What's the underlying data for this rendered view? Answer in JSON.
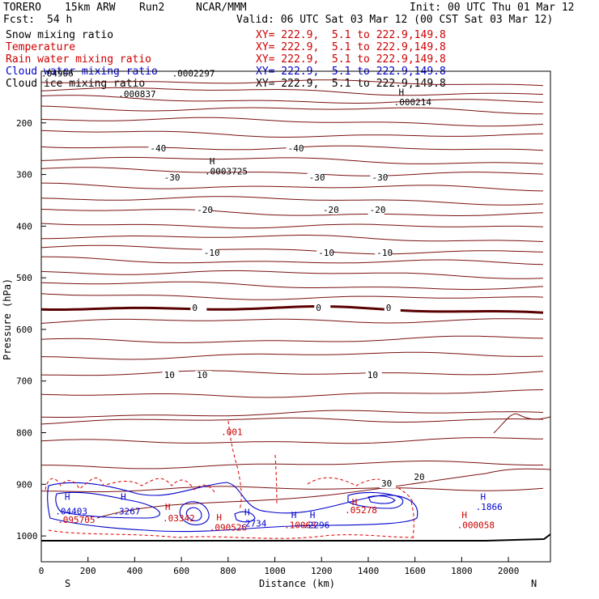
{
  "header": {
    "model": "TORERO",
    "grid": "15km ARW",
    "run": "Run2",
    "org": "NCAR/MMM",
    "init": "Init: 00 UTC Thu 01 Mar 12",
    "fcst_label": "Fcst:",
    "fcst_value": "54 h",
    "valid": "Valid: 06 UTC Sat 03 Mar 12 (00 CST Sat 03 Mar 12)",
    "fields": [
      {
        "name": "Snow mixing ratio",
        "xy": "XY= 222.9,  5.1 to 222.9,149.8",
        "color": "#000000"
      },
      {
        "name": "Temperature",
        "xy": "XY= 222.9,  5.1 to 222.9,149.8",
        "color": "#cc0000"
      },
      {
        "name": "Rain water mixing ratio",
        "xy": "XY= 222.9,  5.1 to 222.9,149.8",
        "color": "#cc0000"
      },
      {
        "name": "Cloud water mixing ratio",
        "xy": "XY= 222.9,  5.1 to 222.9,149.8",
        "color": "#0000cc"
      },
      {
        "name": "Cloud ice mixing ratio",
        "xy": "XY= 222.9,  5.1 to 222.9,149.8",
        "color": "#000000"
      }
    ]
  },
  "chart_data": {
    "type": "contour-cross-section",
    "xlabel": "Distance (km)",
    "ylabel": "Pressure (hPa)",
    "xlim": [
      0,
      2180
    ],
    "ylim": [
      100,
      1050
    ],
    "y_scale": "linear-inverted",
    "x_ticks": [
      0,
      200,
      400,
      600,
      800,
      1000,
      1200,
      1400,
      1600,
      1800,
      2000
    ],
    "y_ticks": [
      200,
      300,
      400,
      500,
      600,
      700,
      800,
      900,
      1000
    ],
    "end_labels": {
      "left": "S",
      "right": "N"
    },
    "colors": {
      "temperature": "#7a1010",
      "zero_isotherm": "#5a0000",
      "rain": "#dd0000",
      "cloud_water": "#0000cc",
      "ice": "#000000",
      "ground": "#000000"
    },
    "temperature_isotherms": [
      {
        "value": -40,
        "labels": [
          {
            "x": 490,
            "text": "-40"
          },
          {
            "x": 1080,
            "text": "-40"
          }
        ]
      },
      {
        "value": -30,
        "labels": [
          {
            "x": 550,
            "text": "-30"
          },
          {
            "x": 1170,
            "text": "-30"
          },
          {
            "x": 1440,
            "text": "-30"
          }
        ]
      },
      {
        "value": -20,
        "labels": [
          {
            "x": 690,
            "text": "-20"
          },
          {
            "x": 1230,
            "text": "-20"
          },
          {
            "x": 1430,
            "text": "-20"
          }
        ]
      },
      {
        "value": -10,
        "labels": [
          {
            "x": 720,
            "text": "-10"
          },
          {
            "x": 1210,
            "text": "-10"
          },
          {
            "x": 1460,
            "text": "-10"
          }
        ]
      },
      {
        "value": 0,
        "labels": [
          {
            "x": 670,
            "text": "0"
          },
          {
            "x": 1200,
            "text": "0"
          },
          {
            "x": 1500,
            "text": "0"
          }
        ]
      },
      {
        "value": 10,
        "labels": [
          {
            "x": 550,
            "text": "10"
          },
          {
            "x": 690,
            "text": "10"
          },
          {
            "x": 1420,
            "text": "10"
          }
        ]
      },
      {
        "value": 20,
        "labels": [
          {
            "x": 1620,
            "text": "20"
          }
        ]
      },
      {
        "value": 30,
        "labels": [
          {
            "x": 1480,
            "text": "30"
          }
        ]
      }
    ],
    "annotations": [
      {
        "text": ".0002297",
        "x": 560,
        "p": 110,
        "color": "black"
      },
      {
        "text": ".04906",
        "x": 0,
        "p": 110,
        "color": "black"
      },
      {
        "text": ".000837",
        "x": 330,
        "p": 150,
        "color": "black"
      },
      {
        "text": "H",
        "x": 1530,
        "p": 146,
        "color": "black"
      },
      {
        "text": ".000214",
        "x": 1510,
        "p": 166,
        "color": "black"
      },
      {
        "text": "H",
        "x": 720,
        "p": 280,
        "color": "black"
      },
      {
        "text": ".0003725",
        "x": 700,
        "p": 300,
        "color": "black"
      },
      {
        "text": ".001",
        "x": 770,
        "p": 805,
        "color": "red"
      },
      {
        "text": "H",
        "x": 100,
        "p": 930,
        "color": "blue"
      },
      {
        "text": ".04403",
        "x": 60,
        "p": 958,
        "color": "blue"
      },
      {
        "text": ".095705",
        "x": 70,
        "p": 975,
        "color": "red"
      },
      {
        "text": "H",
        "x": 340,
        "p": 930,
        "color": "blue"
      },
      {
        "text": ".3267",
        "x": 310,
        "p": 958,
        "color": "blue"
      },
      {
        "text": "H",
        "x": 530,
        "p": 950,
        "color": "red"
      },
      {
        "text": ".03342",
        "x": 520,
        "p": 972,
        "color": "red"
      },
      {
        "text": "H",
        "x": 750,
        "p": 970,
        "color": "red"
      },
      {
        "text": ".090526",
        "x": 720,
        "p": 990,
        "color": "red"
      },
      {
        "text": "H",
        "x": 870,
        "p": 960,
        "color": "blue"
      },
      {
        "text": ".2734",
        "x": 850,
        "p": 982,
        "color": "blue"
      },
      {
        "text": "H",
        "x": 1070,
        "p": 965,
        "color": "blue"
      },
      {
        "text": ".10063",
        "x": 1040,
        "p": 985,
        "color": "red"
      },
      {
        "text": "H",
        "x": 1150,
        "p": 965,
        "color": "blue"
      },
      {
        "text": ".2296",
        "x": 1120,
        "p": 985,
        "color": "blue"
      },
      {
        "text": "H",
        "x": 1330,
        "p": 940,
        "color": "red"
      },
      {
        "text": ".05278",
        "x": 1300,
        "p": 956,
        "color": "red"
      },
      {
        "text": "H",
        "x": 1880,
        "p": 930,
        "color": "blue"
      },
      {
        "text": ".1866",
        "x": 1860,
        "p": 950,
        "color": "blue"
      },
      {
        "text": "H",
        "x": 1800,
        "p": 965,
        "color": "red"
      },
      {
        "text": ".000058",
        "x": 1780,
        "p": 985,
        "color": "red"
      }
    ]
  }
}
